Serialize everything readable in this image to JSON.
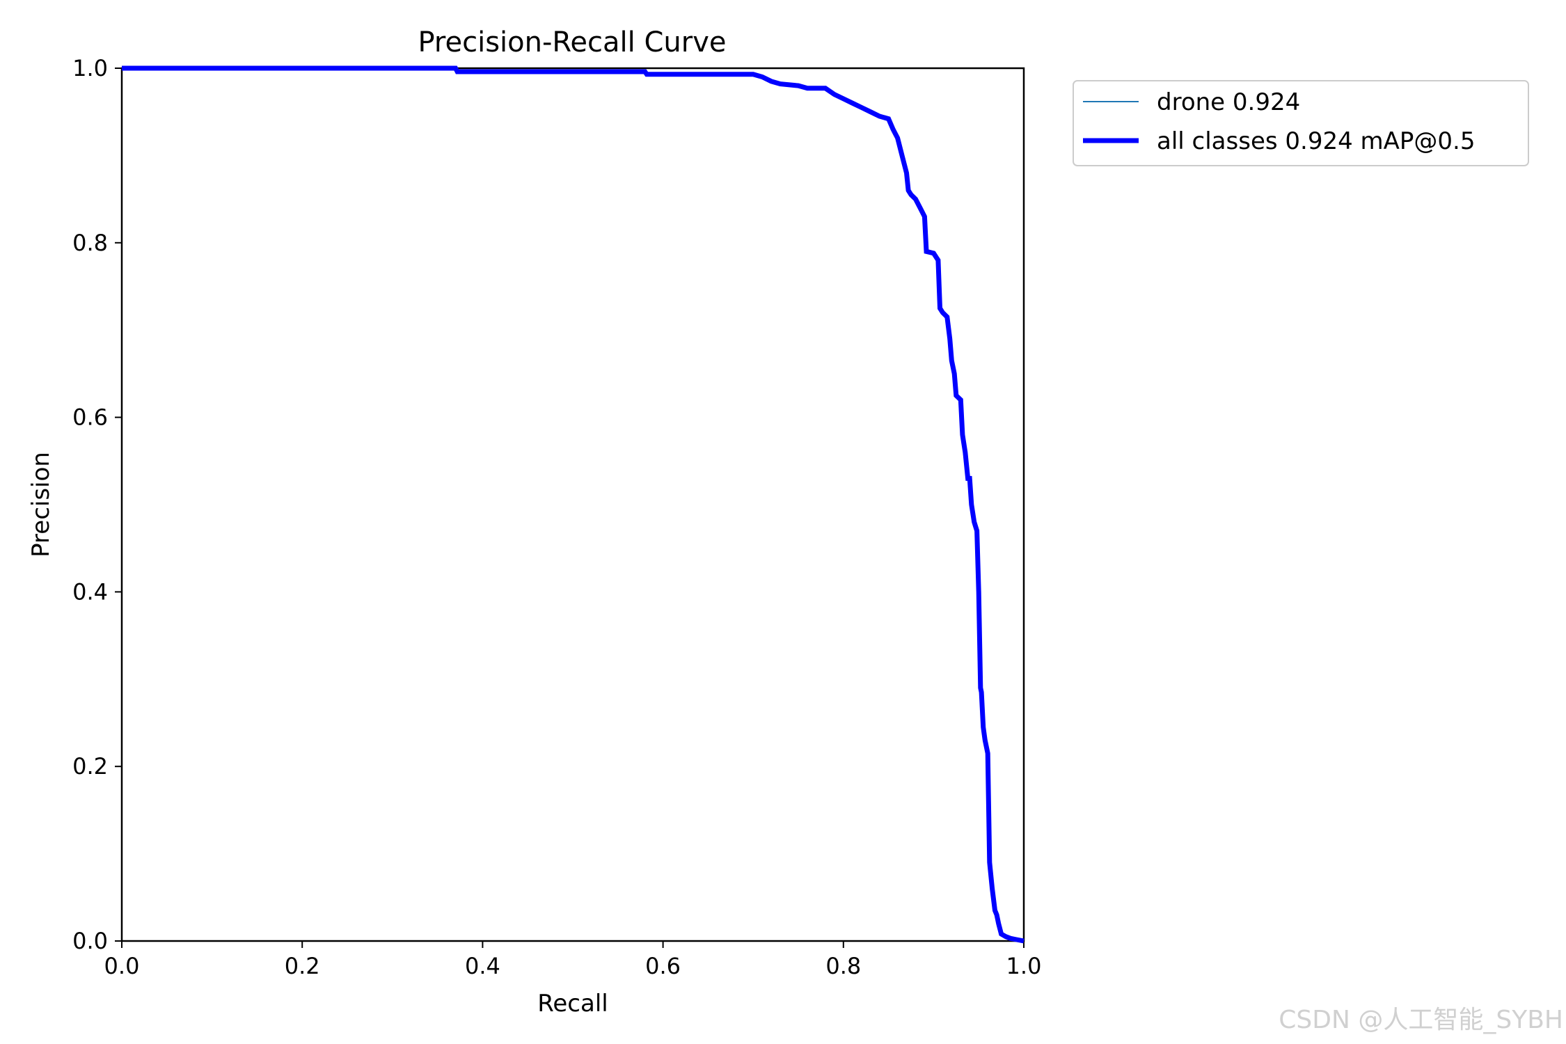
{
  "chart_data": {
    "type": "line",
    "title": "Precision-Recall Curve",
    "xlabel": "Recall",
    "ylabel": "Precision",
    "xlim": [
      0.0,
      1.0
    ],
    "ylim": [
      0.0,
      1.0
    ],
    "x_ticks": [
      "0.0",
      "0.2",
      "0.4",
      "0.6",
      "0.8",
      "1.0"
    ],
    "y_ticks": [
      "0.0",
      "0.2",
      "0.4",
      "0.6",
      "0.8",
      "1.0"
    ],
    "grid": false,
    "legend_position": "outside-top-right",
    "series": [
      {
        "name": "drone 0.924",
        "color": "#1f77b4",
        "line": "thin",
        "x": [
          0.0,
          0.37,
          0.372,
          0.58,
          0.582,
          0.7,
          0.71,
          0.72,
          0.73,
          0.75,
          0.76,
          0.78,
          0.79,
          0.8,
          0.81,
          0.82,
          0.83,
          0.84,
          0.85,
          0.855,
          0.86,
          0.865,
          0.87,
          0.872,
          0.875,
          0.88,
          0.885,
          0.89,
          0.892,
          0.9,
          0.905,
          0.907,
          0.91,
          0.915,
          0.918,
          0.92,
          0.923,
          0.925,
          0.93,
          0.932,
          0.935,
          0.938,
          0.94,
          0.942,
          0.945,
          0.948,
          0.95,
          0.952,
          0.953,
          0.955,
          0.957,
          0.96,
          0.962,
          0.965,
          0.968,
          0.97,
          0.972,
          0.975,
          0.98,
          0.985,
          0.99,
          1.0
        ],
        "y": [
          1.0,
          1.0,
          0.996,
          0.996,
          0.993,
          0.993,
          0.99,
          0.985,
          0.982,
          0.98,
          0.977,
          0.977,
          0.97,
          0.965,
          0.96,
          0.955,
          0.95,
          0.945,
          0.942,
          0.93,
          0.92,
          0.9,
          0.88,
          0.86,
          0.855,
          0.85,
          0.84,
          0.83,
          0.79,
          0.788,
          0.78,
          0.725,
          0.72,
          0.715,
          0.69,
          0.665,
          0.65,
          0.625,
          0.62,
          0.58,
          0.56,
          0.53,
          0.53,
          0.5,
          0.48,
          0.47,
          0.4,
          0.29,
          0.285,
          0.245,
          0.23,
          0.215,
          0.09,
          0.06,
          0.035,
          0.03,
          0.02,
          0.008,
          0.005,
          0.003,
          0.002,
          0.0
        ]
      },
      {
        "name": "all classes 0.924 mAP@0.5",
        "color": "#0000ff",
        "line": "thick",
        "x": [
          0.0,
          0.37,
          0.372,
          0.58,
          0.582,
          0.7,
          0.71,
          0.72,
          0.73,
          0.75,
          0.76,
          0.78,
          0.79,
          0.8,
          0.81,
          0.82,
          0.83,
          0.84,
          0.85,
          0.855,
          0.86,
          0.865,
          0.87,
          0.872,
          0.875,
          0.88,
          0.885,
          0.89,
          0.892,
          0.9,
          0.905,
          0.907,
          0.91,
          0.915,
          0.918,
          0.92,
          0.923,
          0.925,
          0.93,
          0.932,
          0.935,
          0.938,
          0.94,
          0.942,
          0.945,
          0.948,
          0.95,
          0.952,
          0.953,
          0.955,
          0.957,
          0.96,
          0.962,
          0.965,
          0.968,
          0.97,
          0.972,
          0.975,
          0.98,
          0.985,
          0.99,
          1.0
        ],
        "y": [
          1.0,
          1.0,
          0.996,
          0.996,
          0.993,
          0.993,
          0.99,
          0.985,
          0.982,
          0.98,
          0.977,
          0.977,
          0.97,
          0.965,
          0.96,
          0.955,
          0.95,
          0.945,
          0.942,
          0.93,
          0.92,
          0.9,
          0.88,
          0.86,
          0.855,
          0.85,
          0.84,
          0.83,
          0.79,
          0.788,
          0.78,
          0.725,
          0.72,
          0.715,
          0.69,
          0.665,
          0.65,
          0.625,
          0.62,
          0.58,
          0.56,
          0.53,
          0.53,
          0.5,
          0.48,
          0.47,
          0.4,
          0.29,
          0.285,
          0.245,
          0.23,
          0.215,
          0.09,
          0.06,
          0.035,
          0.03,
          0.02,
          0.008,
          0.005,
          0.003,
          0.002,
          0.0
        ]
      }
    ]
  },
  "watermark": "CSDN @人工智能_SYBH"
}
